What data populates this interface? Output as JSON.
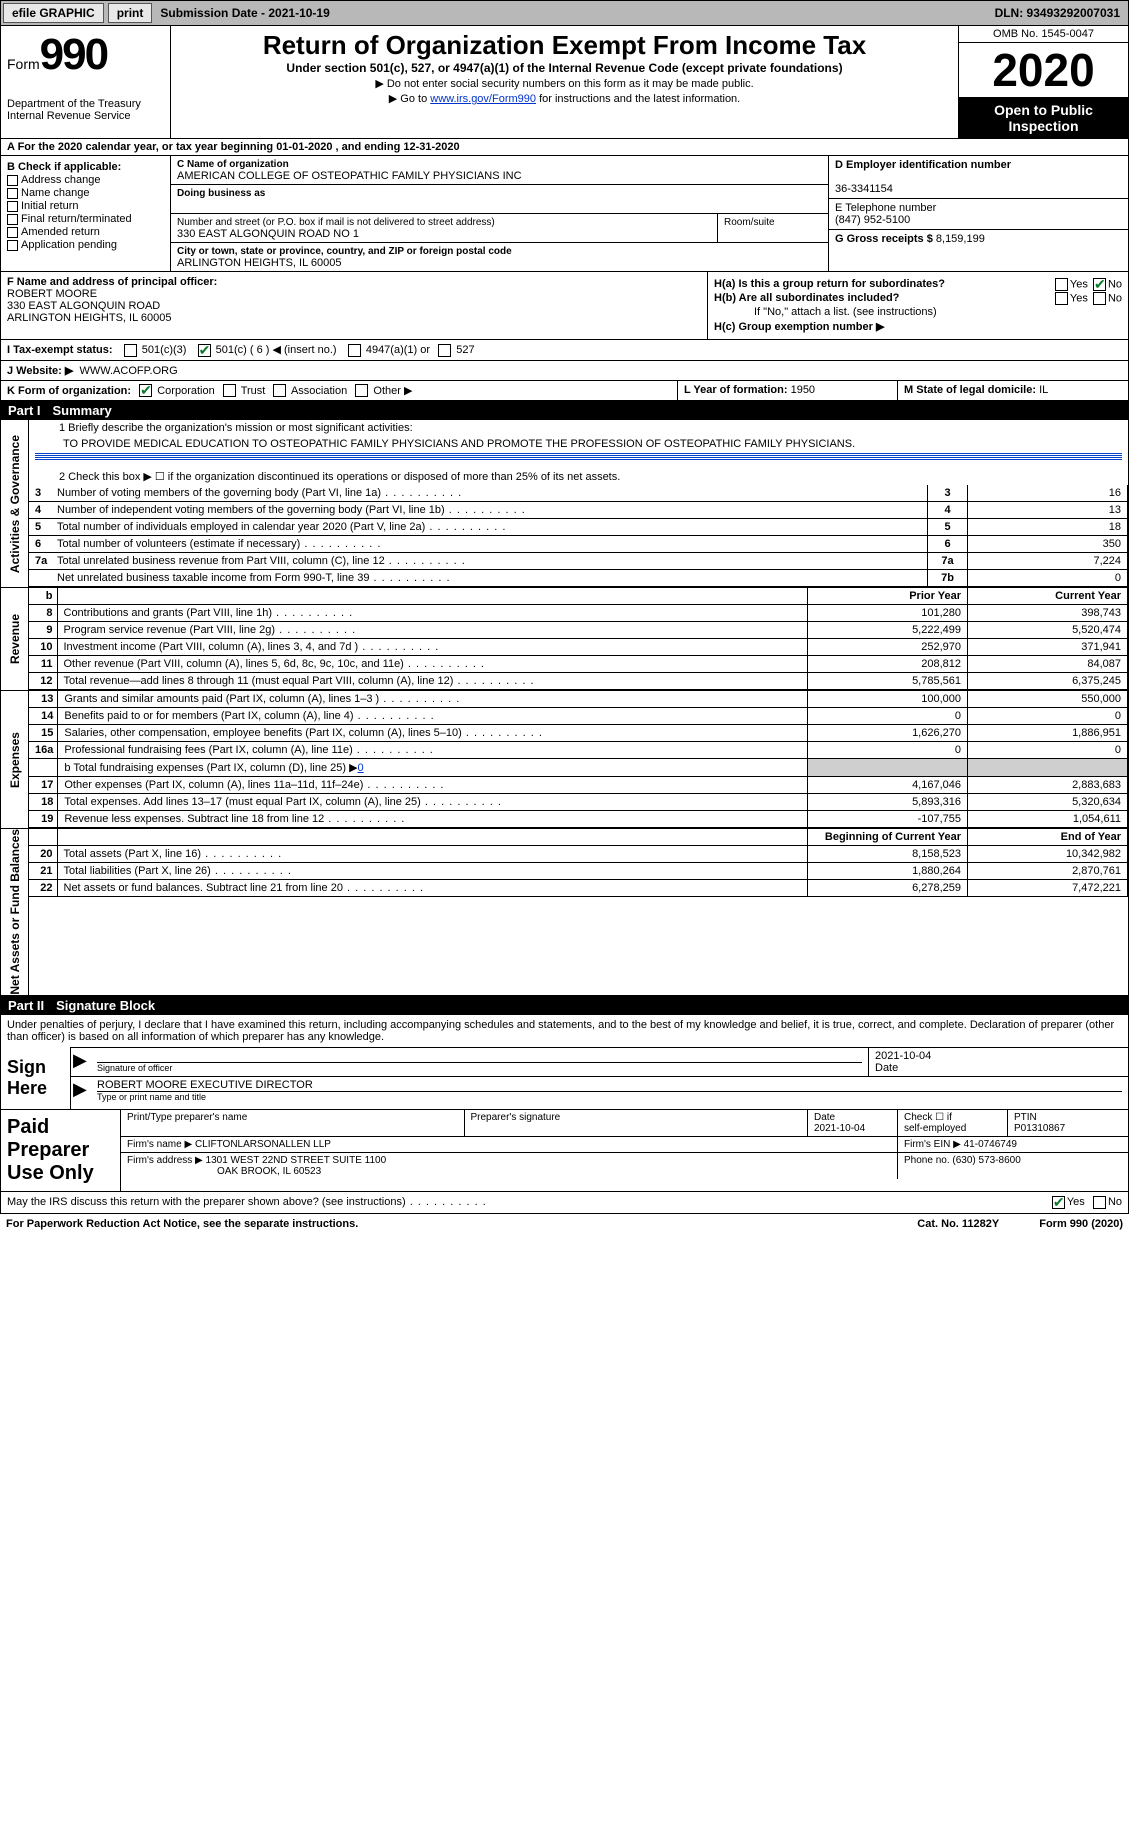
{
  "topbar": {
    "efile_label": "efile GRAPHIC",
    "print_label": "print",
    "submission_label": "Submission Date - 2021-10-19",
    "dln_label": "DLN: 93493292007031"
  },
  "header": {
    "form_word": "Form",
    "form_num": "990",
    "dept1": "Department of the Treasury",
    "dept2": "Internal Revenue Service",
    "title": "Return of Organization Exempt From Income Tax",
    "subtitle": "Under section 501(c), 527, or 4947(a)(1) of the Internal Revenue Code (except private foundations)",
    "note1": "▶ Do not enter social security numbers on this form as it may be made public.",
    "note2_pre": "▶ Go to ",
    "note2_link": "www.irs.gov/Form990",
    "note2_post": " for instructions and the latest information.",
    "omb": "OMB No. 1545-0047",
    "year": "2020",
    "opento": "Open to Public Inspection"
  },
  "line_a": "A For the 2020 calendar year, or tax year beginning 01-01-2020   , and ending 12-31-2020",
  "section_b": {
    "header": "B Check if applicable:",
    "opts": [
      "Address change",
      "Name change",
      "Initial return",
      "Final return/terminated",
      "Amended return",
      "Application pending"
    ]
  },
  "section_c": {
    "name_lab": "C Name of organization",
    "name": "AMERICAN COLLEGE OF OSTEOPATHIC FAMILY PHYSICIANS INC",
    "dba_lab": "Doing business as",
    "dba": "",
    "addr_lab": "Number and street (or P.O. box if mail is not delivered to street address)",
    "room_lab": "Room/suite",
    "addr": "330 EAST ALGONQUIN ROAD NO 1",
    "city_lab": "City or town, state or province, country, and ZIP or foreign postal code",
    "city": "ARLINGTON HEIGHTS, IL  60005"
  },
  "section_d": {
    "ein_lab": "D Employer identification number",
    "ein": "36-3341154",
    "tel_lab": "E Telephone number",
    "tel": "(847) 952-5100",
    "gross_lab": "G Gross receipts $",
    "gross": "8,159,199"
  },
  "section_f": {
    "lab": "F Name and address of principal officer:",
    "name": "ROBERT MOORE",
    "addr1": "330 EAST ALGONQUIN ROAD",
    "addr2": "ARLINGTON HEIGHTS, IL  60005"
  },
  "section_h": {
    "ha": "H(a)  Is this a group return for subordinates?",
    "hb": "H(b)  Are all subordinates included?",
    "hb_note": "If \"No,\" attach a list. (see instructions)",
    "hc": "H(c)  Group exemption number ▶",
    "yes": "Yes",
    "no": "No"
  },
  "row_i": {
    "lab": "I   Tax-exempt status:",
    "o1": "501(c)(3)",
    "o2": "501(c) ( 6 ) ◀ (insert no.)",
    "o3": "4947(a)(1) or",
    "o4": "527"
  },
  "row_j": {
    "lab": "J   Website: ▶",
    "val": "WWW.ACOFP.ORG"
  },
  "row_k": {
    "lab": "K Form of organization:",
    "o1": "Corporation",
    "o2": "Trust",
    "o3": "Association",
    "o4": "Other ▶",
    "l_lab": "L Year of formation:",
    "l_val": "1950",
    "m_lab": "M State of legal domicile:",
    "m_val": "IL"
  },
  "part1": {
    "num": "Part I",
    "title": "Summary"
  },
  "summary": {
    "vlabel": "Activities & Governance",
    "l1_lab": "1   Briefly describe the organization's mission or most significant activities:",
    "l1_val": "TO PROVIDE MEDICAL EDUCATION TO OSTEOPATHIC FAMILY PHYSICIANS AND PROMOTE THE PROFESSION OF OSTEOPATHIC FAMILY PHYSICIANS.",
    "l2": "2   Check this box ▶ ☐  if the organization discontinued its operations or disposed of more than 25% of its net assets.",
    "rows": [
      {
        "n": "3",
        "d": "Number of voting members of the governing body (Part VI, line 1a)",
        "box": "3",
        "v": "16"
      },
      {
        "n": "4",
        "d": "Number of independent voting members of the governing body (Part VI, line 1b)",
        "box": "4",
        "v": "13"
      },
      {
        "n": "5",
        "d": "Total number of individuals employed in calendar year 2020 (Part V, line 2a)",
        "box": "5",
        "v": "18"
      },
      {
        "n": "6",
        "d": "Total number of volunteers (estimate if necessary)",
        "box": "6",
        "v": "350"
      },
      {
        "n": "7a",
        "d": "Total unrelated business revenue from Part VIII, column (C), line 12",
        "box": "7a",
        "v": "7,224"
      },
      {
        "n": "",
        "d": "Net unrelated business taxable income from Form 990-T, line 39",
        "box": "7b",
        "v": "0"
      }
    ]
  },
  "revenue": {
    "vlabel": "Revenue",
    "hdr_b": "b",
    "hdr_py": "Prior Year",
    "hdr_cy": "Current Year",
    "rows": [
      {
        "n": "8",
        "d": "Contributions and grants (Part VIII, line 1h)",
        "py": "101,280",
        "cy": "398,743"
      },
      {
        "n": "9",
        "d": "Program service revenue (Part VIII, line 2g)",
        "py": "5,222,499",
        "cy": "5,520,474"
      },
      {
        "n": "10",
        "d": "Investment income (Part VIII, column (A), lines 3, 4, and 7d )",
        "py": "252,970",
        "cy": "371,941"
      },
      {
        "n": "11",
        "d": "Other revenue (Part VIII, column (A), lines 5, 6d, 8c, 9c, 10c, and 11e)",
        "py": "208,812",
        "cy": "84,087"
      },
      {
        "n": "12",
        "d": "Total revenue—add lines 8 through 11 (must equal Part VIII, column (A), line 12)",
        "py": "5,785,561",
        "cy": "6,375,245"
      }
    ]
  },
  "expenses": {
    "vlabel": "Expenses",
    "rows": [
      {
        "n": "13",
        "d": "Grants and similar amounts paid (Part IX, column (A), lines 1–3 )",
        "py": "100,000",
        "cy": "550,000"
      },
      {
        "n": "14",
        "d": "Benefits paid to or for members (Part IX, column (A), line 4)",
        "py": "0",
        "cy": "0"
      },
      {
        "n": "15",
        "d": "Salaries, other compensation, employee benefits (Part IX, column (A), lines 5–10)",
        "py": "1,626,270",
        "cy": "1,886,951"
      },
      {
        "n": "16a",
        "d": "Professional fundraising fees (Part IX, column (A), line 11e)",
        "py": "0",
        "cy": "0"
      }
    ],
    "l16b": "b  Total fundraising expenses (Part IX, column (D), line 25) ▶",
    "l16b_val": "0",
    "rows2": [
      {
        "n": "17",
        "d": "Other expenses (Part IX, column (A), lines 11a–11d, 11f–24e)",
        "py": "4,167,046",
        "cy": "2,883,683"
      },
      {
        "n": "18",
        "d": "Total expenses. Add lines 13–17 (must equal Part IX, column (A), line 25)",
        "py": "5,893,316",
        "cy": "5,320,634"
      },
      {
        "n": "19",
        "d": "Revenue less expenses. Subtract line 18 from line 12",
        "py": "-107,755",
        "cy": "1,054,611"
      }
    ]
  },
  "netassets": {
    "vlabel": "Net Assets or Fund Balances",
    "hdr_py": "Beginning of Current Year",
    "hdr_cy": "End of Year",
    "rows": [
      {
        "n": "20",
        "d": "Total assets (Part X, line 16)",
        "py": "8,158,523",
        "cy": "10,342,982"
      },
      {
        "n": "21",
        "d": "Total liabilities (Part X, line 26)",
        "py": "1,880,264",
        "cy": "2,870,761"
      },
      {
        "n": "22",
        "d": "Net assets or fund balances. Subtract line 21 from line 20",
        "py": "6,278,259",
        "cy": "7,472,221"
      }
    ]
  },
  "part2": {
    "num": "Part II",
    "title": "Signature Block"
  },
  "sig": {
    "decl": "Under penalties of perjury, I declare that I have examined this return, including accompanying schedules and statements, and to the best of my knowledge and belief, it is true, correct, and complete. Declaration of preparer (other than officer) is based on all information of which preparer has any knowledge.",
    "sign_here": "Sign Here",
    "sig_officer_cap": "Signature of officer",
    "date_cap": "Date",
    "date_val": "2021-10-04",
    "name_title": "ROBERT MOORE  EXECUTIVE DIRECTOR",
    "name_cap": "Type or print name and title"
  },
  "paid": {
    "lab": "Paid Preparer Use Only",
    "h1": "Print/Type preparer's name",
    "h2": "Preparer's signature",
    "h3": "Date",
    "h3v": "2021-10-04",
    "h4a": "Check ☐ if",
    "h4b": "self-employed",
    "h5": "PTIN",
    "h5v": "P01310867",
    "firm_lab": "Firm's name    ▶",
    "firm": "CLIFTONLARSONALLEN LLP",
    "ein_lab": "Firm's EIN ▶",
    "ein": "41-0746749",
    "addr_lab": "Firm's address ▶",
    "addr1": "1301 WEST 22ND STREET SUITE 1100",
    "addr2": "OAK BROOK, IL  60523",
    "phone_lab": "Phone no.",
    "phone": "(630) 573-8600"
  },
  "bottom": {
    "q": "May the IRS discuss this return with the preparer shown above? (see instructions)",
    "yes": "Yes",
    "no": "No"
  },
  "footer": {
    "left": "For Paperwork Reduction Act Notice, see the separate instructions.",
    "mid": "Cat. No. 11282Y",
    "right": "Form 990 (2020)"
  },
  "colors": {
    "link": "#0033cc",
    "check": "#0a7a2a",
    "grey": "#cfcfcf",
    "topbar": "#b8b8b8"
  }
}
